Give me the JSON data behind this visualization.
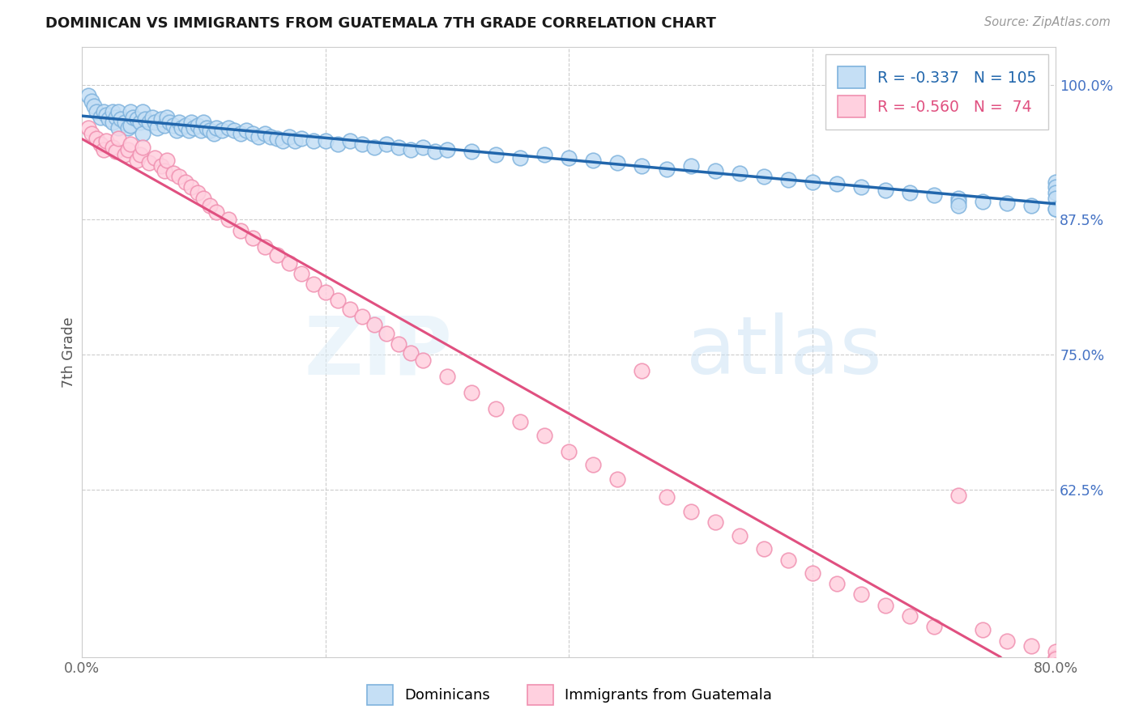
{
  "title": "DOMINICAN VS IMMIGRANTS FROM GUATEMALA 7TH GRADE CORRELATION CHART",
  "source": "Source: ZipAtlas.com",
  "ylabel": "7th Grade",
  "xmin": 0.0,
  "xmax": 0.8,
  "ymin": 0.47,
  "ymax": 1.035,
  "yticks": [
    0.625,
    0.75,
    0.875,
    1.0
  ],
  "ytick_labels": [
    "62.5%",
    "75.0%",
    "87.5%",
    "100.0%"
  ],
  "xticks": [
    0.0,
    0.2,
    0.4,
    0.6,
    0.8
  ],
  "xtick_labels": [
    "0.0%",
    "",
    "",
    "",
    "80.0%"
  ],
  "blue_R": -0.337,
  "blue_N": 105,
  "pink_R": -0.56,
  "pink_N": 74,
  "blue_line_color": "#2166ac",
  "pink_line_color": "#e05080",
  "blue_scatter_facecolor": "#c5dff5",
  "blue_scatter_edgecolor": "#7fb3dd",
  "pink_scatter_facecolor": "#ffd0df",
  "pink_scatter_edgecolor": "#f090b0",
  "legend_blue_label": "Dominicans",
  "legend_pink_label": "Immigrants from Guatemala",
  "watermark_zip": "ZIP",
  "watermark_atlas": "atlas",
  "right_axis_color": "#4472c4",
  "blue_legend_color": "#2166ac",
  "pink_legend_color": "#e05080",
  "blue_points_x": [
    0.005,
    0.008,
    0.01,
    0.012,
    0.015,
    0.018,
    0.02,
    0.022,
    0.025,
    0.025,
    0.028,
    0.03,
    0.03,
    0.032,
    0.035,
    0.038,
    0.04,
    0.04,
    0.042,
    0.045,
    0.048,
    0.05,
    0.05,
    0.052,
    0.055,
    0.058,
    0.06,
    0.062,
    0.065,
    0.068,
    0.07,
    0.072,
    0.075,
    0.078,
    0.08,
    0.082,
    0.085,
    0.088,
    0.09,
    0.092,
    0.095,
    0.098,
    0.1,
    0.102,
    0.105,
    0.108,
    0.11,
    0.115,
    0.12,
    0.125,
    0.13,
    0.135,
    0.14,
    0.145,
    0.15,
    0.155,
    0.16,
    0.165,
    0.17,
    0.175,
    0.18,
    0.19,
    0.2,
    0.21,
    0.22,
    0.23,
    0.24,
    0.25,
    0.26,
    0.27,
    0.28,
    0.29,
    0.3,
    0.32,
    0.34,
    0.36,
    0.38,
    0.4,
    0.42,
    0.44,
    0.46,
    0.48,
    0.5,
    0.52,
    0.54,
    0.56,
    0.58,
    0.6,
    0.62,
    0.64,
    0.66,
    0.68,
    0.7,
    0.72,
    0.74,
    0.76,
    0.78,
    0.8,
    0.8,
    0.8,
    0.8,
    0.8,
    0.8,
    0.72,
    0.72
  ],
  "blue_points_y": [
    0.99,
    0.985,
    0.98,
    0.975,
    0.97,
    0.975,
    0.972,
    0.968,
    0.975,
    0.965,
    0.97,
    0.975,
    0.96,
    0.968,
    0.965,
    0.96,
    0.975,
    0.962,
    0.97,
    0.968,
    0.965,
    0.975,
    0.955,
    0.968,
    0.965,
    0.97,
    0.965,
    0.96,
    0.968,
    0.962,
    0.97,
    0.965,
    0.962,
    0.958,
    0.965,
    0.96,
    0.962,
    0.958,
    0.965,
    0.96,
    0.962,
    0.958,
    0.965,
    0.96,
    0.958,
    0.955,
    0.96,
    0.958,
    0.96,
    0.958,
    0.955,
    0.958,
    0.955,
    0.952,
    0.955,
    0.952,
    0.95,
    0.948,
    0.952,
    0.948,
    0.95,
    0.948,
    0.948,
    0.945,
    0.948,
    0.945,
    0.942,
    0.945,
    0.942,
    0.94,
    0.942,
    0.938,
    0.94,
    0.938,
    0.935,
    0.932,
    0.935,
    0.932,
    0.93,
    0.928,
    0.925,
    0.922,
    0.925,
    0.92,
    0.918,
    0.915,
    0.912,
    0.91,
    0.908,
    0.905,
    0.902,
    0.9,
    0.898,
    0.895,
    0.892,
    0.89,
    0.888,
    0.885,
    0.91,
    0.905,
    0.9,
    0.895,
    0.885,
    0.892,
    0.888
  ],
  "pink_points_x": [
    0.005,
    0.008,
    0.012,
    0.015,
    0.018,
    0.02,
    0.025,
    0.028,
    0.03,
    0.035,
    0.038,
    0.04,
    0.045,
    0.048,
    0.05,
    0.055,
    0.06,
    0.065,
    0.068,
    0.07,
    0.075,
    0.08,
    0.085,
    0.09,
    0.095,
    0.1,
    0.105,
    0.11,
    0.12,
    0.13,
    0.14,
    0.15,
    0.16,
    0.17,
    0.18,
    0.19,
    0.2,
    0.21,
    0.22,
    0.23,
    0.24,
    0.25,
    0.26,
    0.27,
    0.28,
    0.3,
    0.32,
    0.34,
    0.36,
    0.38,
    0.4,
    0.42,
    0.44,
    0.46,
    0.48,
    0.5,
    0.52,
    0.54,
    0.56,
    0.58,
    0.6,
    0.62,
    0.64,
    0.66,
    0.68,
    0.7,
    0.72,
    0.74,
    0.76,
    0.78,
    0.8,
    0.8,
    0.8,
    0.8
  ],
  "pink_points_y": [
    0.96,
    0.955,
    0.95,
    0.945,
    0.94,
    0.948,
    0.942,
    0.938,
    0.95,
    0.935,
    0.94,
    0.945,
    0.93,
    0.935,
    0.942,
    0.928,
    0.932,
    0.925,
    0.92,
    0.93,
    0.918,
    0.915,
    0.91,
    0.905,
    0.9,
    0.895,
    0.888,
    0.882,
    0.875,
    0.865,
    0.858,
    0.85,
    0.842,
    0.835,
    0.825,
    0.815,
    0.808,
    0.8,
    0.792,
    0.785,
    0.778,
    0.77,
    0.76,
    0.752,
    0.745,
    0.73,
    0.715,
    0.7,
    0.688,
    0.675,
    0.66,
    0.648,
    0.635,
    0.735,
    0.618,
    0.605,
    0.595,
    0.582,
    0.57,
    0.56,
    0.548,
    0.538,
    0.528,
    0.518,
    0.508,
    0.498,
    0.62,
    0.495,
    0.485,
    0.48,
    0.47,
    0.475,
    0.468,
    0.462
  ]
}
